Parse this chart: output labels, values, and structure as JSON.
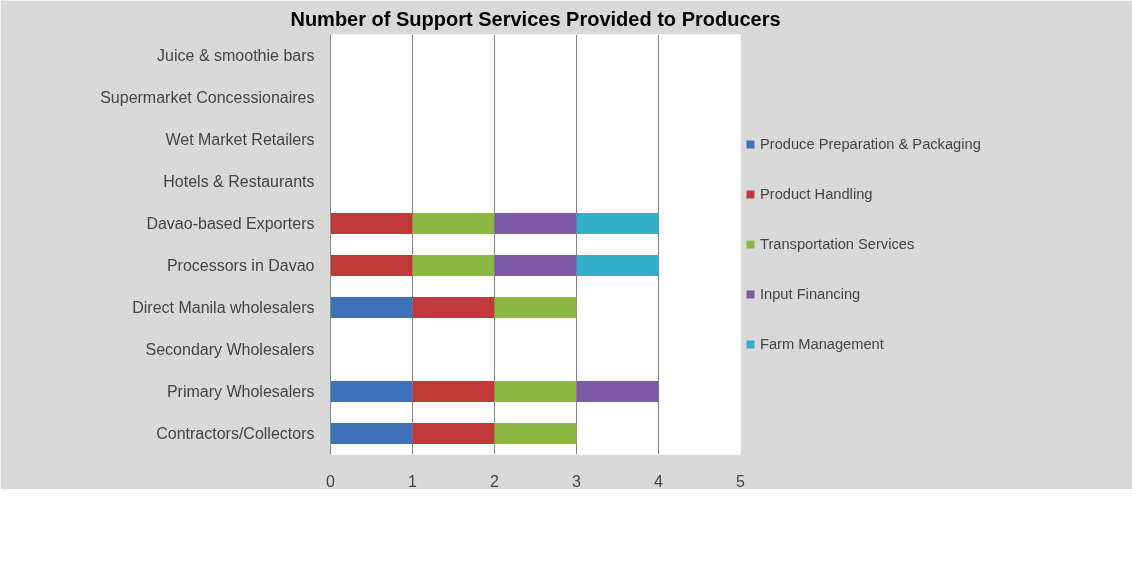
{
  "chart_data": {
    "type": "bar",
    "orientation": "horizontal",
    "stacked": true,
    "title": "Number of Support Services Provided to Producers",
    "categories": [
      "Juice & smoothie bars",
      "Supermarket Concessionaires",
      "Wet Market Retailers",
      "Hotels & Restaurants",
      "Davao-based Exporters",
      "Processors in Davao",
      "Direct Manila wholesalers",
      "Secondary Wholesalers",
      "Primary Wholesalers",
      "Contractors/Collectors"
    ],
    "series": [
      {
        "name": "Produce Preparation & Packaging",
        "color": "#3f72b8",
        "values": [
          0,
          0,
          0,
          0,
          0,
          0,
          1,
          0,
          1,
          1
        ]
      },
      {
        "name": "Product Handling",
        "color": "#c0393b",
        "values": [
          0,
          0,
          0,
          0,
          1,
          1,
          1,
          0,
          1,
          1
        ]
      },
      {
        "name": "Transportation Services",
        "color": "#8db844",
        "values": [
          0,
          0,
          0,
          0,
          1,
          1,
          1,
          0,
          1,
          1
        ]
      },
      {
        "name": "Input Financing",
        "color": "#7d5aa6",
        "values": [
          0,
          0,
          0,
          0,
          1,
          1,
          0,
          0,
          1,
          0
        ]
      },
      {
        "name": "Farm Management",
        "color": "#34aec9",
        "values": [
          0,
          0,
          0,
          0,
          1,
          1,
          0,
          0,
          0,
          0
        ]
      }
    ],
    "xlim": [
      0,
      5
    ],
    "xticks": [
      0,
      1,
      2,
      3,
      4,
      5
    ],
    "grid": "x",
    "legend": "right"
  }
}
